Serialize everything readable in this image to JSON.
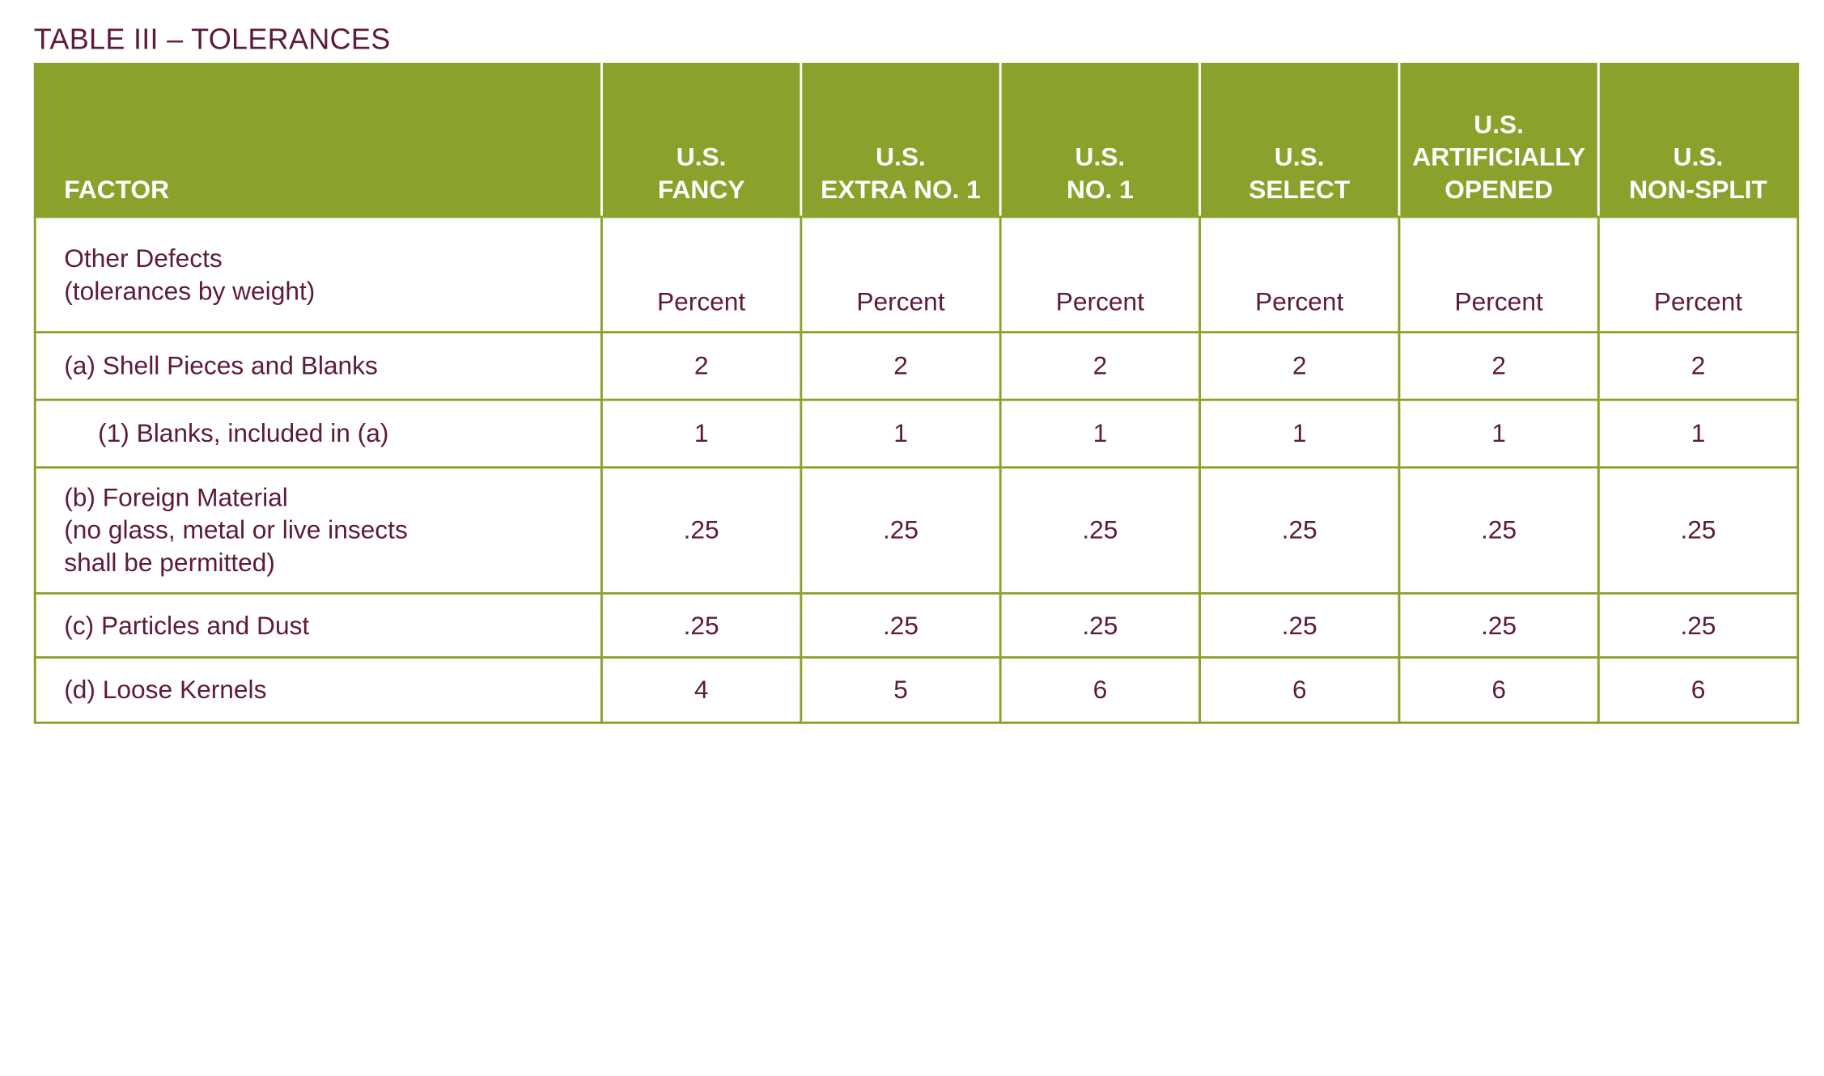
{
  "title": "TABLE III – TOLERANCES",
  "header": {
    "factor": "FACTOR",
    "grades": [
      {
        "line1": "U.S.",
        "line2": "FANCY"
      },
      {
        "line1": "U.S.",
        "line2": "EXTRA NO. 1"
      },
      {
        "line1": "U.S.",
        "line2": "NO. 1"
      },
      {
        "line1": "U.S.",
        "line2": "SELECT"
      },
      {
        "line0": "U.S.",
        "line1": "ARTIFICIALLY",
        "line2": "OPENED"
      },
      {
        "line1": "U.S.",
        "line2": "NON-SPLIT"
      }
    ]
  },
  "rows": {
    "other_defects": {
      "label_line1": "Other Defects",
      "label_line2": "(tolerances by weight)",
      "values": [
        "Percent",
        "Percent",
        "Percent",
        "Percent",
        "Percent",
        "Percent"
      ]
    },
    "shell_pieces": {
      "label": "(a) Shell Pieces and Blanks",
      "values": [
        "2",
        "2",
        "2",
        "2",
        "2",
        "2"
      ]
    },
    "blanks": {
      "label": "(1) Blanks, included in (a)",
      "values": [
        "1",
        "1",
        "1",
        "1",
        "1",
        "1"
      ]
    },
    "foreign_material": {
      "label_line1": "(b) Foreign Material",
      "label_line2": "(no glass, metal or live insects",
      "label_line3": "shall be permitted)",
      "values": [
        ".25",
        ".25",
        ".25",
        ".25",
        ".25",
        ".25"
      ]
    },
    "particles": {
      "label": "(c) Particles and Dust",
      "values": [
        ".25",
        ".25",
        ".25",
        ".25",
        ".25",
        ".25"
      ]
    },
    "loose_kernels": {
      "label": "(d) Loose Kernels",
      "values": [
        "4",
        "5",
        "6",
        "6",
        "6",
        "6"
      ]
    }
  },
  "colors": {
    "header_bg": "#8aa22b",
    "text": "#5e1a3c",
    "border": "#8aa22b"
  }
}
